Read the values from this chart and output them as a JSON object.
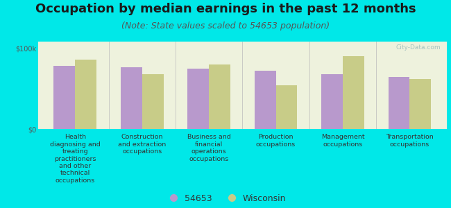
{
  "title": "Occupation by median earnings in the past 12 months",
  "subtitle": "(Note: State values scaled to 54653 population)",
  "background_color": "#00e8e8",
  "plot_bg_top": "#eef2dd",
  "plot_bg_bottom": "#f5f7e8",
  "categories": [
    "Health\ndiagnosing and\ntreating\npractitioners\nand other\ntechnical\noccupations",
    "Construction\nand extraction\noccupations",
    "Business and\nfinancial\noperations\noccupations",
    "Production\noccupations",
    "Management\noccupations",
    "Transportation\noccupations"
  ],
  "city_values": [
    78000,
    76000,
    75000,
    72000,
    68000,
    64000
  ],
  "state_values": [
    86000,
    68000,
    80000,
    54000,
    90000,
    62000
  ],
  "city_color": "#b899cc",
  "state_color": "#c8cc88",
  "ylim": [
    0,
    108000
  ],
  "ytick_vals": [
    0,
    100000
  ],
  "ytick_labels": [
    "$0",
    "$100k"
  ],
  "legend_city": "54653",
  "legend_state": "Wisconsin",
  "bar_width": 0.32,
  "title_fontsize": 13,
  "subtitle_fontsize": 9,
  "tick_label_fontsize": 7,
  "legend_fontsize": 9,
  "watermark": "City-Data.com"
}
